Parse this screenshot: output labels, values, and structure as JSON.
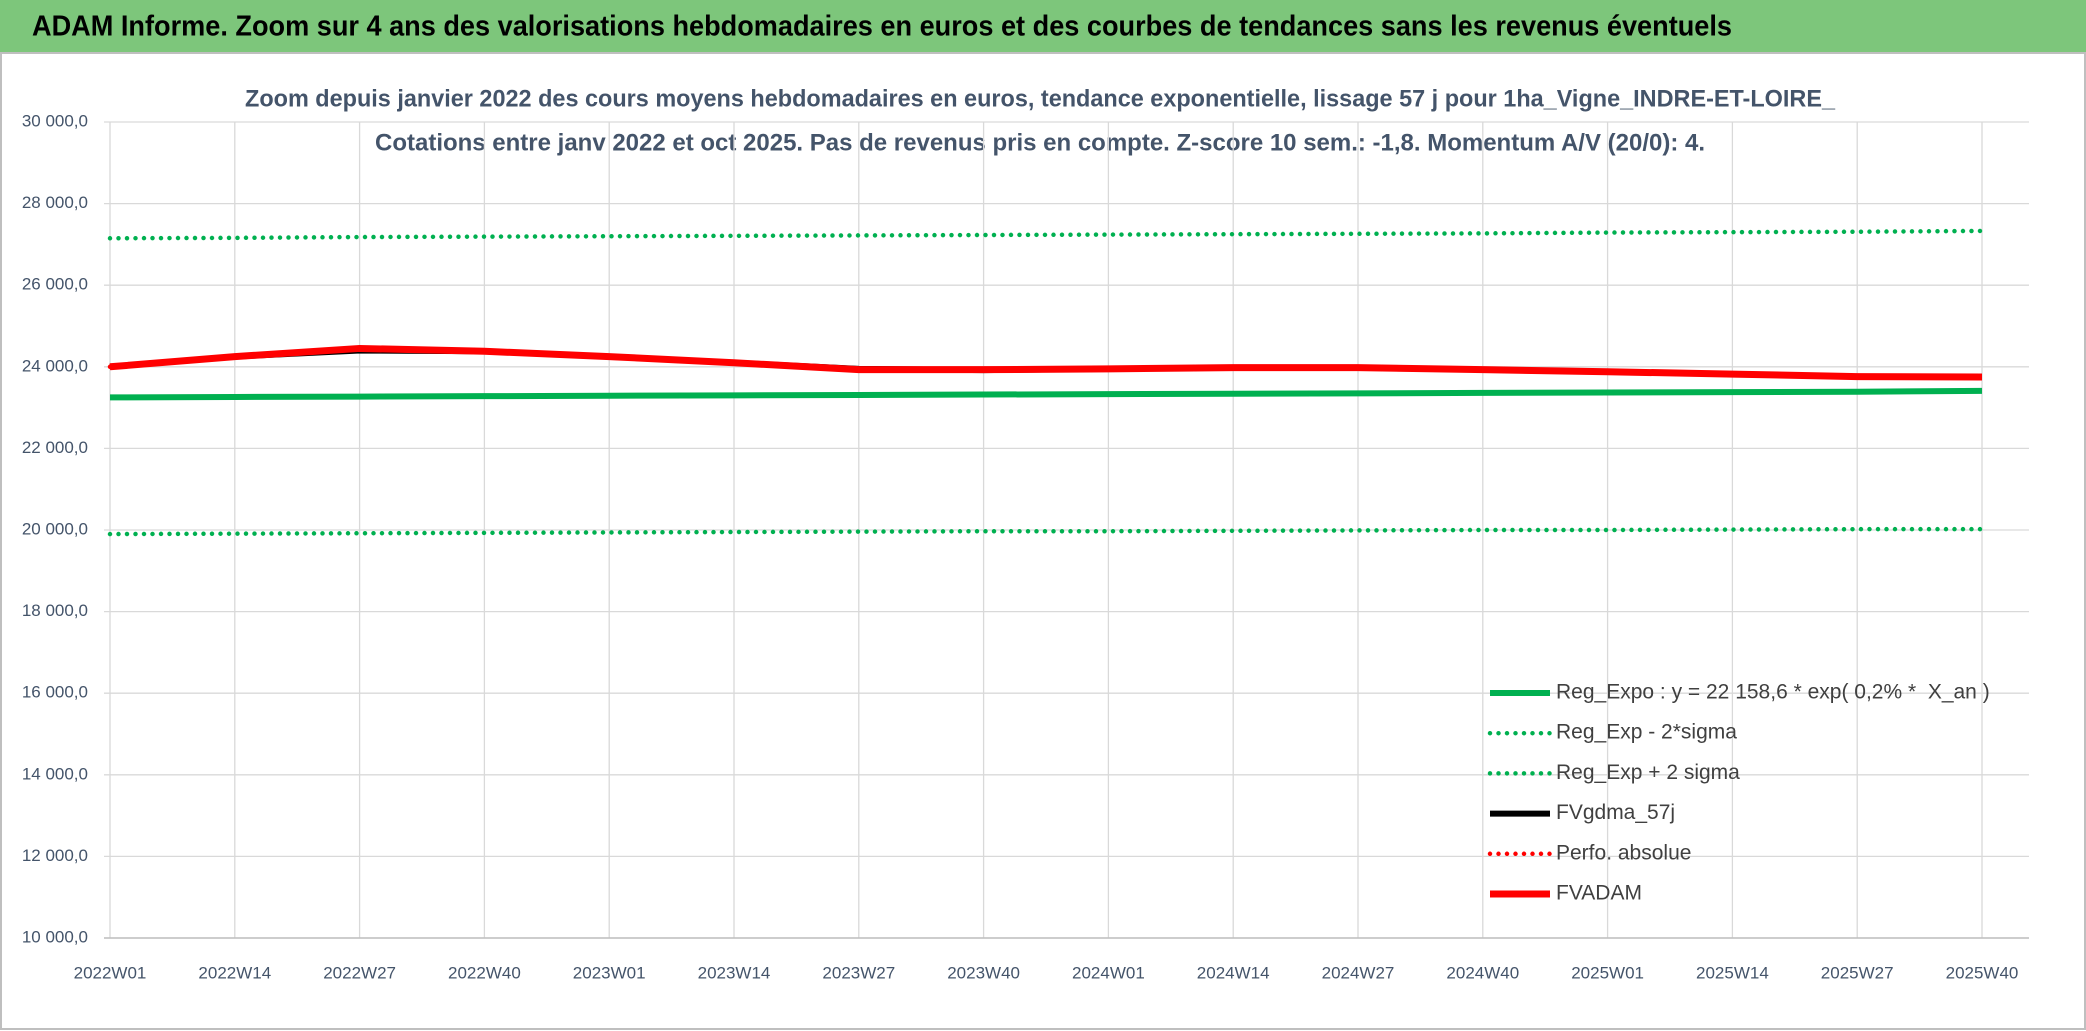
{
  "header": {
    "title": "ADAM Informe. Zoom sur 4 ans des valorisations hebdomadaires en euros et des courbes de tendances sans les revenus éventuels"
  },
  "chart_data": {
    "type": "line",
    "title": "Zoom depuis janvier 2022 des cours moyens hebdomadaires en euros, tendance exponentielle, lissage 57 j pour 1ha_Vigne_INDRE-ET-LOIRE_",
    "subtitle": "Cotations entre janv 2022 et oct 2025. Pas de revenus pris en compte. Z-score 10 sem.: -1,8. Momentum A/V (20/0): 4.",
    "categories": [
      "2022W01",
      "2022W14",
      "2022W27",
      "2022W40",
      "2023W01",
      "2023W14",
      "2023W27",
      "2023W40",
      "2024W01",
      "2024W14",
      "2024W27",
      "2024W40",
      "2025W01",
      "2025W14",
      "2025W27",
      "2025W40"
    ],
    "series": [
      {
        "name": "Reg_Expo : y = 22 158,6 * exp( 0,2% *  X_an )",
        "color": "#00b050",
        "dash": "solid",
        "values": [
          23250,
          23260,
          23270,
          23280,
          23290,
          23300,
          23310,
          23320,
          23330,
          23340,
          23350,
          23360,
          23370,
          23380,
          23390,
          23410
        ]
      },
      {
        "name": "Reg_Exp - 2*sigma",
        "color": "#00b050",
        "dash": "dotted",
        "values": [
          19900,
          19910,
          19920,
          19930,
          19940,
          19950,
          19960,
          19970,
          19970,
          19980,
          19990,
          20000,
          20000,
          20010,
          20020,
          20020
        ]
      },
      {
        "name": "Reg_Exp + 2 sigma",
        "color": "#00b050",
        "dash": "dotted",
        "values": [
          27150,
          27160,
          27180,
          27190,
          27200,
          27210,
          27220,
          27230,
          27240,
          27250,
          27260,
          27270,
          27290,
          27300,
          27310,
          27330
        ]
      },
      {
        "name": "FVgdma_57j",
        "color": "#000000",
        "dash": "solid",
        "values": [
          24000,
          24250,
          24400,
          24380,
          24250,
          24100,
          23950,
          23920,
          23950,
          23980,
          23980,
          23930,
          23880,
          23820,
          23760,
          23750
        ]
      },
      {
        "name": "Perfo. absolue",
        "color": "#ff0000",
        "dash": "dotted",
        "values": [
          24000,
          24250,
          24450,
          24380,
          24250,
          24100,
          23930,
          23930,
          23950,
          23980,
          23980,
          23930,
          23880,
          23820,
          23760,
          23750
        ]
      },
      {
        "name": "FVADAM",
        "color": "#ff0000",
        "dash": "solid",
        "values": [
          24000,
          24250,
          24450,
          24380,
          24250,
          24100,
          23930,
          23930,
          23950,
          23980,
          23980,
          23930,
          23880,
          23820,
          23760,
          23750
        ]
      }
    ],
    "ylim": [
      10000,
      30000
    ],
    "yticks": [
      {
        "value": 10000,
        "label": "10 000,0"
      },
      {
        "value": 12000,
        "label": "12 000,0"
      },
      {
        "value": 14000,
        "label": "14 000,0"
      },
      {
        "value": 16000,
        "label": "16 000,0"
      },
      {
        "value": 18000,
        "label": "18 000,0"
      },
      {
        "value": 20000,
        "label": "20 000,0"
      },
      {
        "value": 22000,
        "label": "22 000,0"
      },
      {
        "value": 24000,
        "label": "24 000,0"
      },
      {
        "value": 26000,
        "label": "26 000,0"
      },
      {
        "value": 28000,
        "label": "28 000,0"
      },
      {
        "value": 30000,
        "label": "30 000,0"
      }
    ],
    "grid": true,
    "legend": "lower right"
  }
}
